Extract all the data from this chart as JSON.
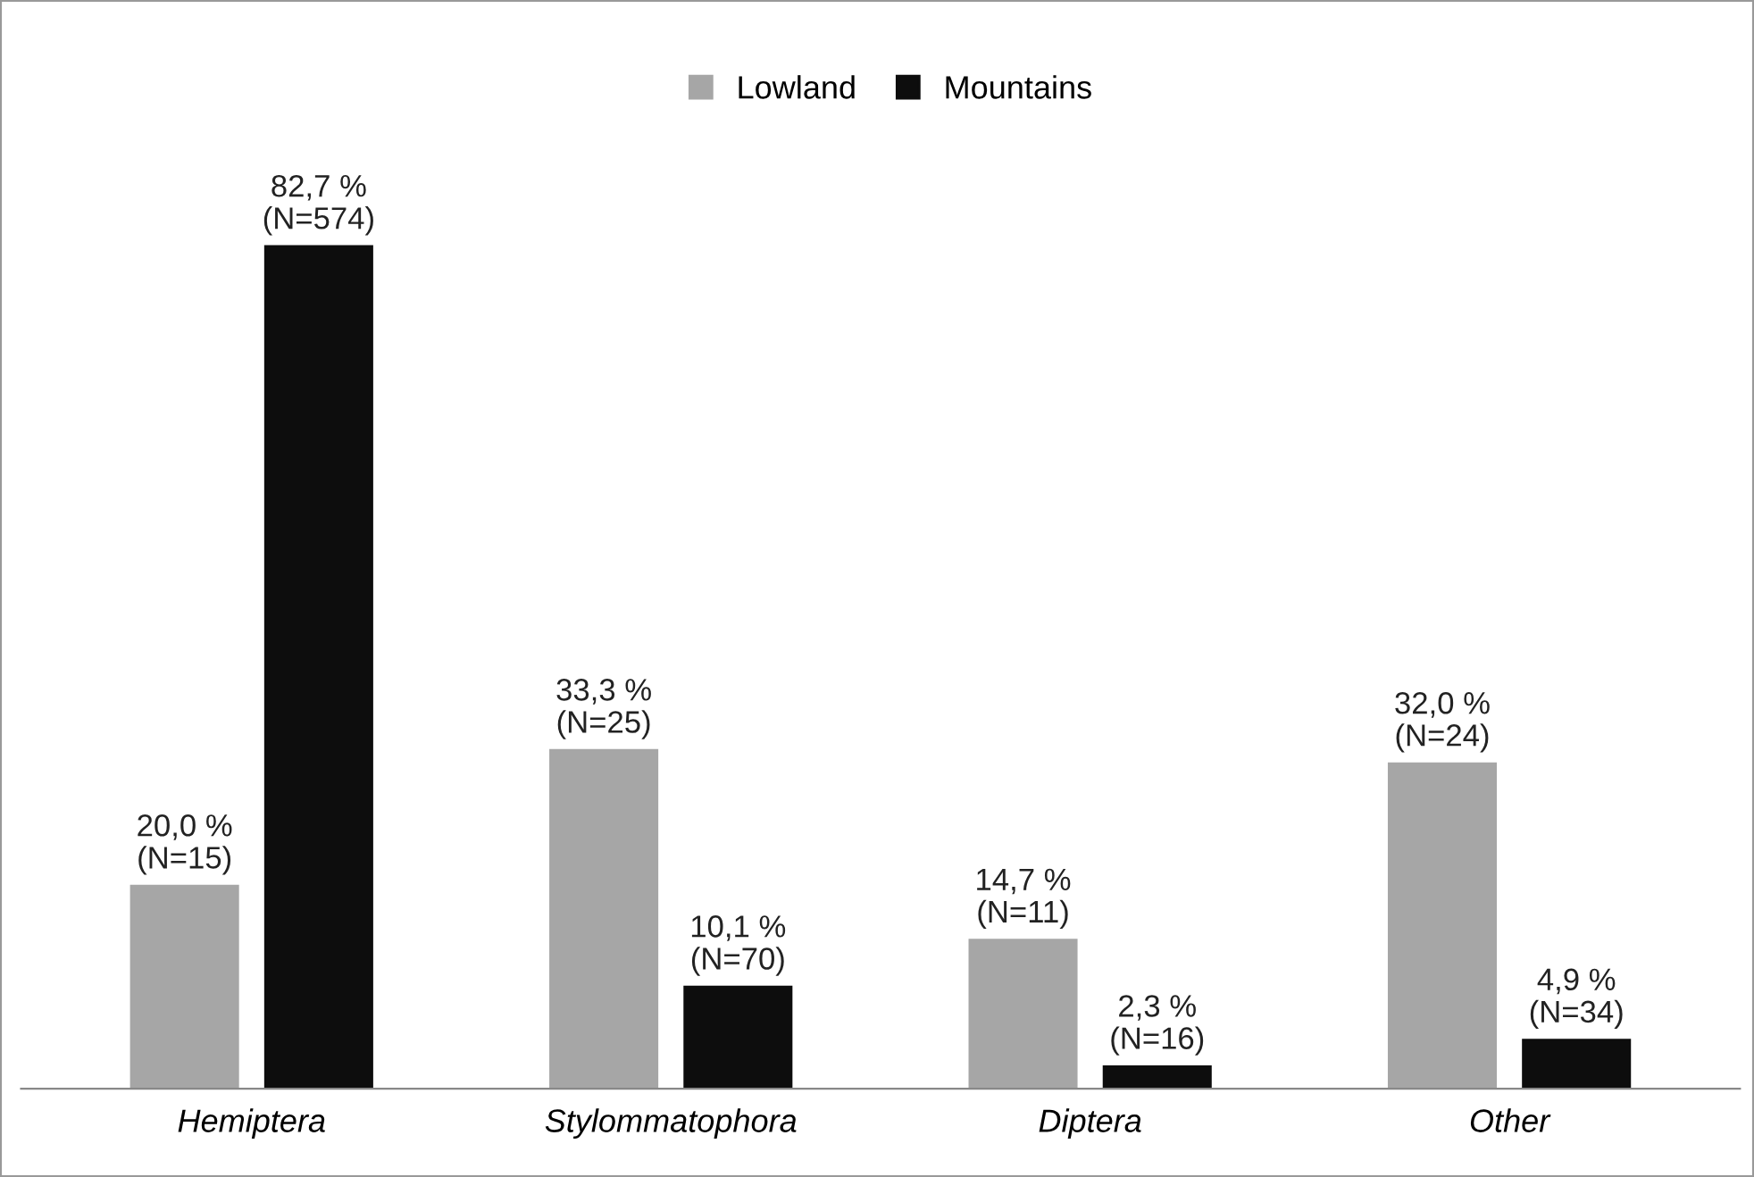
{
  "chart_data": {
    "type": "bar",
    "categories": [
      "Hemiptera",
      "Stylommatophora",
      "Diptera",
      "Other"
    ],
    "series": [
      {
        "name": "Lowland",
        "color": "#a6a6a6",
        "values": [
          20.0,
          33.3,
          14.7,
          32.0
        ],
        "value_labels": [
          "20,0 %\n(N=15)",
          "33,3 %\n(N=25)",
          "14,7 %\n(N=11)",
          "32,0 %\n(N=24)"
        ]
      },
      {
        "name": "Mountains",
        "color": "#0d0d0d",
        "values": [
          82.7,
          10.1,
          2.3,
          4.9
        ],
        "value_labels": [
          "82,7 %\n(N=574)",
          "10,1 %\n(N=70)",
          "2,3 %\n(N=16)",
          "4,9 %\n(N=34)"
        ]
      }
    ],
    "legend": "top",
    "grid": false
  }
}
